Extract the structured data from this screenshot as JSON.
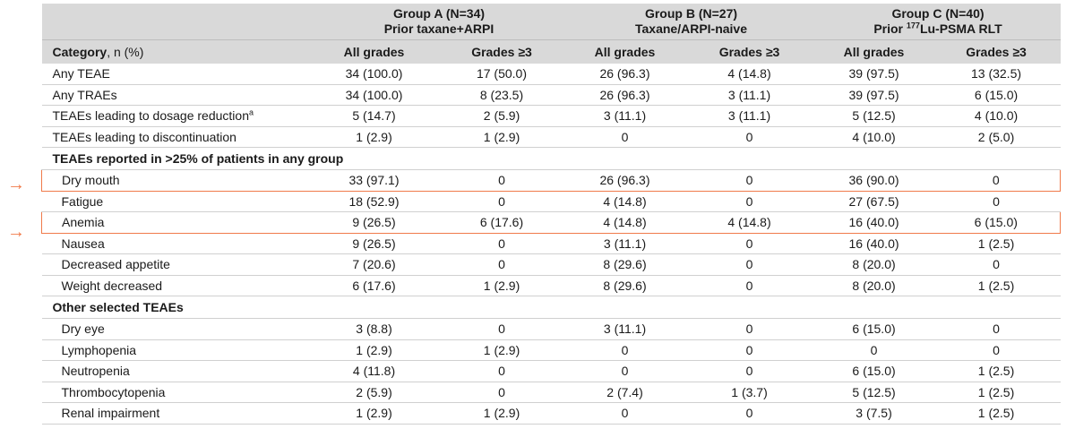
{
  "groups": [
    {
      "title": "Group A (N=34)",
      "subtitle": "Prior taxane+ARPI"
    },
    {
      "title": "Group B (N=27)",
      "subtitle": "Taxane/ARPI-naive"
    },
    {
      "title": "Group C (N=40)",
      "subtitle_pre": "Prior ",
      "subtitle_sup": "177",
      "subtitle_post": "Lu-PSMA RLT"
    }
  ],
  "header": {
    "category_bold": "Category",
    "category_rest": ", n (%)",
    "all_grades": "All grades",
    "grades3": "Grades ≥3"
  },
  "summary_rows": [
    {
      "label": "Any TEAE",
      "sup": "",
      "values": [
        "34 (100.0)",
        "17 (50.0)",
        "26 (96.3)",
        "4 (14.8)",
        "39 (97.5)",
        "13 (32.5)"
      ]
    },
    {
      "label": "Any TRAEs",
      "sup": "",
      "values": [
        "34 (100.0)",
        "8 (23.5)",
        "26 (96.3)",
        "3 (11.1)",
        "39 (97.5)",
        "6 (15.0)"
      ]
    },
    {
      "label": "TEAEs leading to dosage reduction",
      "sup": "a",
      "values": [
        "5 (14.7)",
        "2 (5.9)",
        "3 (11.1)",
        "3 (11.1)",
        "5 (12.5)",
        "4 (10.0)"
      ]
    },
    {
      "label": "TEAEs leading to discontinuation",
      "sup": "",
      "values": [
        "1 (2.9)",
        "1 (2.9)",
        "0",
        "0",
        "4 (10.0)",
        "2 (5.0)"
      ]
    }
  ],
  "section1": {
    "title": "TEAEs reported in >25% of patients in any group",
    "rows": [
      {
        "label": "Dry mouth",
        "values": [
          "33 (97.1)",
          "0",
          "26 (96.3)",
          "0",
          "36 (90.0)",
          "0"
        ]
      },
      {
        "label": "Fatigue",
        "values": [
          "18 (52.9)",
          "0",
          "4 (14.8)",
          "0",
          "27 (67.5)",
          "0"
        ]
      },
      {
        "label": "Anemia",
        "values": [
          "9 (26.5)",
          "6 (17.6)",
          "4 (14.8)",
          "4 (14.8)",
          "16 (40.0)",
          "6 (15.0)"
        ]
      },
      {
        "label": "Nausea",
        "values": [
          "9 (26.5)",
          "0",
          "3 (11.1)",
          "0",
          "16 (40.0)",
          "1 (2.5)"
        ]
      },
      {
        "label": "Decreased appetite",
        "values": [
          "7 (20.6)",
          "0",
          "8 (29.6)",
          "0",
          "8 (20.0)",
          "0"
        ]
      },
      {
        "label": "Weight decreased",
        "values": [
          "6 (17.6)",
          "1 (2.9)",
          "8 (29.6)",
          "0",
          "8 (20.0)",
          "1 (2.5)"
        ]
      }
    ]
  },
  "section2": {
    "title": "Other selected TEAEs",
    "rows": [
      {
        "label": "Dry eye",
        "values": [
          "3 (8.8)",
          "0",
          "3 (11.1)",
          "0",
          "6 (15.0)",
          "0"
        ]
      },
      {
        "label": "Lymphopenia",
        "values": [
          "1 (2.9)",
          "1 (2.9)",
          "0",
          "0",
          "0",
          "0"
        ]
      },
      {
        "label": "Neutropenia",
        "values": [
          "4 (11.8)",
          "0",
          "0",
          "0",
          "6 (15.0)",
          "1 (2.5)"
        ]
      },
      {
        "label": "Thrombocytopenia",
        "values": [
          "2 (5.9)",
          "0",
          "2 (7.4)",
          "1 (3.7)",
          "5 (12.5)",
          "1 (2.5)"
        ]
      },
      {
        "label": "Renal impairment",
        "values": [
          "1 (2.9)",
          "1 (2.9)",
          "0",
          "0",
          "3 (7.5)",
          "1 (2.5)"
        ]
      }
    ]
  },
  "highlight_arrow": "→",
  "colors": {
    "header_bg": "#d9d9d9",
    "highlight": "#f07a4a",
    "rule": "#555555"
  }
}
